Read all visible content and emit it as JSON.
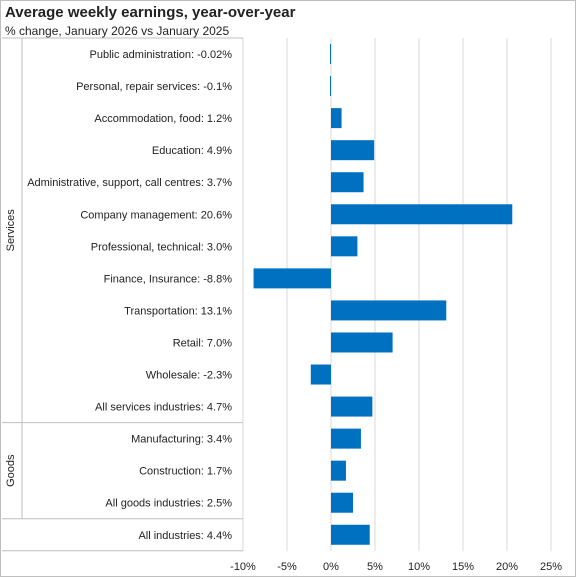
{
  "chart_data": {
    "type": "bar",
    "orientation": "horizontal",
    "title": "Average weekly earnings, year-over-year",
    "subtitle": "% change, January 2026 vs January 2025",
    "categories": [
      "Public administration:  -0.02%",
      "Personal, repair services:  -0.1%",
      "Accommodation, food:  1.2%",
      "Education:  4.9%",
      "Administrative, support, call centres:  3.7%",
      "Company management:  20.6%",
      "Professional, technical:  3.0%",
      "Finance, Insurance:  -8.8%",
      "Transportation:  13.1%",
      "Retail:  7.0%",
      "Wholesale:  -2.3%",
      "All services industries:  4.7%",
      "Manufacturing:  3.4%",
      "Construction:  1.7%",
      "All goods industries:  2.5%",
      "All industries:  4.4%"
    ],
    "values": [
      -0.02,
      -0.1,
      1.2,
      4.9,
      3.7,
      20.6,
      3.0,
      -8.8,
      13.1,
      7.0,
      -2.3,
      4.7,
      3.4,
      1.7,
      2.5,
      4.4
    ],
    "groups": [
      {
        "name": "Services",
        "count": 12
      },
      {
        "name": "Goods",
        "count": 3
      },
      {
        "name": "",
        "count": 1
      }
    ],
    "xticks": [
      "-10%",
      "-5%",
      "0%",
      "5%",
      "10%",
      "15%",
      "20%",
      "25%"
    ],
    "xlim": [
      -10,
      25
    ],
    "xlabel": "",
    "ylabel": "",
    "grid": "vertical",
    "bar_color": "#0070c0"
  }
}
